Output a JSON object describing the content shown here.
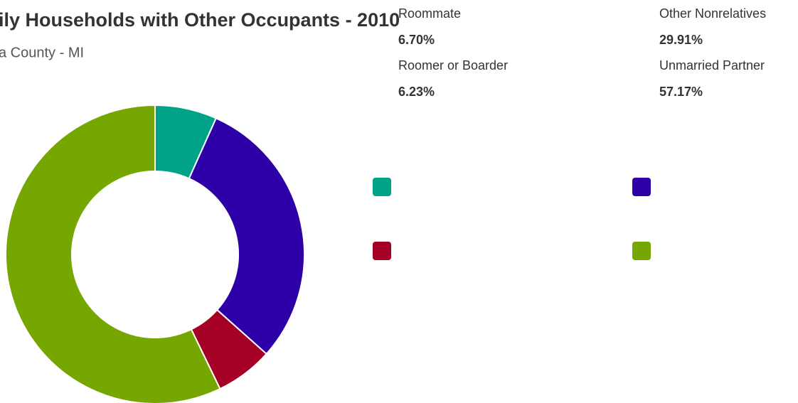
{
  "chart_data": {
    "type": "pie",
    "title": "ily Households with Other Occupants - 2010",
    "subtitle": "a County - MI",
    "categories": [
      "Roommate",
      "Other Nonrelatives",
      "Roomer or Boarder",
      "Unmarried Partner"
    ],
    "values": [
      6.7,
      29.91,
      6.23,
      57.17
    ],
    "value_labels": [
      "6.70%",
      "29.91%",
      "6.23%",
      "57.17%"
    ],
    "colors": [
      "#00a388",
      "#2e00a8",
      "#a50026",
      "#76a600"
    ],
    "donut": true
  }
}
